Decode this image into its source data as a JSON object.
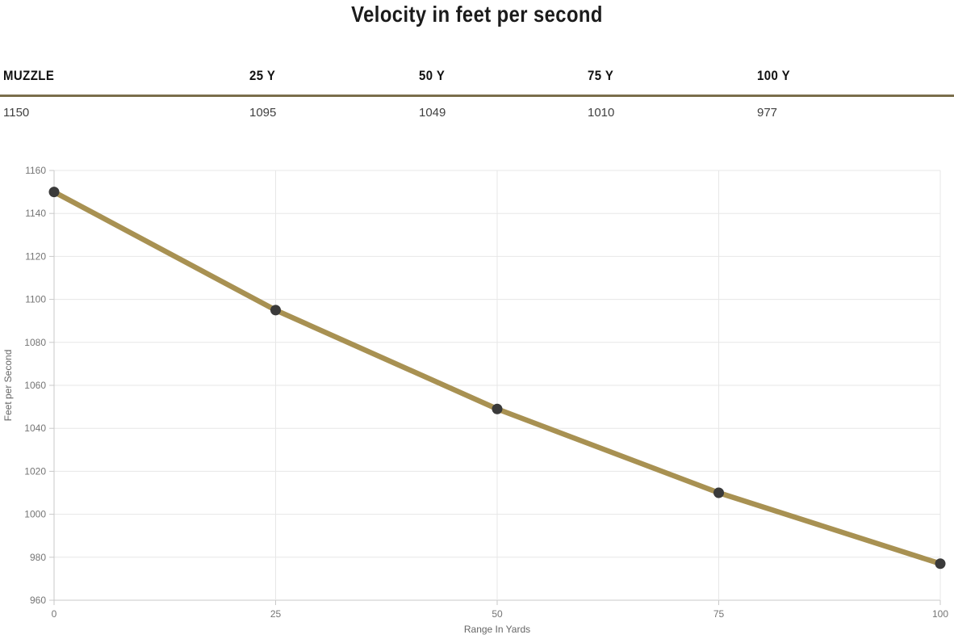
{
  "page": {
    "title": "Velocity in feet per second"
  },
  "table": {
    "headers": [
      "MUZZLE",
      "25 Y",
      "50 Y",
      "75 Y",
      "100 Y"
    ],
    "values": [
      "1150",
      "1095",
      "1049",
      "1010",
      "977"
    ]
  },
  "chart_data": {
    "type": "line",
    "title": "Velocity in feet per second",
    "x": [
      0,
      25,
      50,
      75,
      100
    ],
    "values": [
      1150,
      1095,
      1049,
      1010,
      977
    ],
    "xlabel": "Range In Yards",
    "ylabel": "Feet per Second",
    "xlim": [
      0,
      100
    ],
    "ylim": [
      960,
      1160
    ],
    "xticks": [
      0,
      25,
      50,
      75,
      100
    ],
    "ytick_step": 20,
    "grid": true,
    "legend": false,
    "line_color": "#a89152",
    "marker_color": "#3a3a3a",
    "gridline_color": "#e7e7e7",
    "axis_line_color": "#c9c9c9",
    "tick_label_color": "#757575",
    "axis_title_color": "#666666",
    "separator_color": "#7a6e4b"
  }
}
